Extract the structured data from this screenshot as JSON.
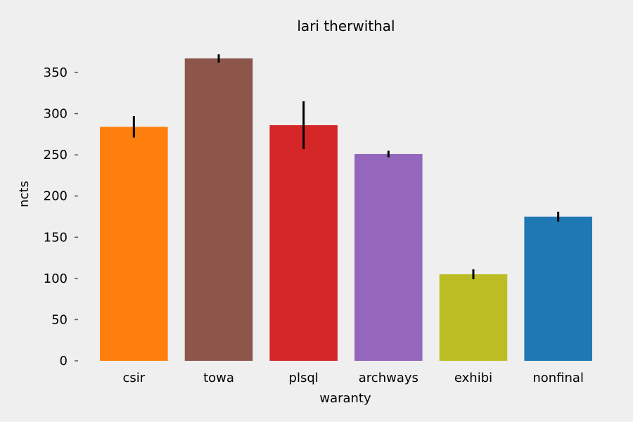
{
  "chart_data": {
    "type": "bar",
    "title": "lari therwithal",
    "xlabel": "waranty",
    "ylabel": "ncts",
    "categories": [
      "csir",
      "towa",
      "plsql",
      "archways",
      "exhibi",
      "nonfinal"
    ],
    "values": [
      284,
      367,
      286,
      251,
      105,
      175
    ],
    "errors": [
      13,
      5,
      29,
      4,
      6,
      6
    ],
    "colors": [
      "#ff7f0e",
      "#8c564b",
      "#d62728",
      "#9467bd",
      "#bcbd22",
      "#1f77b4"
    ],
    "ylim": [
      0,
      385
    ],
    "yticks": [
      0,
      50,
      100,
      150,
      200,
      250,
      300,
      350
    ],
    "grid": false,
    "legend": "none"
  }
}
